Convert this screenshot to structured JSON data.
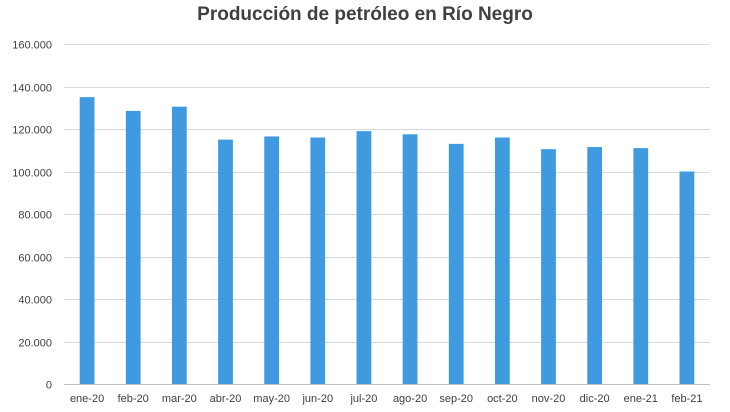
{
  "chart_data": {
    "type": "bar",
    "title": "Producción de petróleo en Río Negro",
    "xlabel": "",
    "ylabel": "",
    "categories": [
      "ene-20",
      "feb-20",
      "mar-20",
      "abr-20",
      "may-20",
      "jun-20",
      "jul-20",
      "ago-20",
      "sep-20",
      "oct-20",
      "nov-20",
      "dic-20",
      "ene-21",
      "feb-21"
    ],
    "values": [
      135000,
      128500,
      130500,
      115000,
      116500,
      116000,
      119000,
      117500,
      113000,
      116000,
      110500,
      111500,
      111000,
      100000
    ],
    "ylim": [
      0,
      160000
    ],
    "yticks": [
      0,
      20000,
      40000,
      60000,
      80000,
      100000,
      120000,
      140000,
      160000
    ],
    "ytick_labels": [
      "0",
      "20.000",
      "40.000",
      "60.000",
      "80.000",
      "100.000",
      "120.000",
      "140.000",
      "160.000"
    ],
    "grid": true,
    "bar_color": "#3f9ae0"
  }
}
